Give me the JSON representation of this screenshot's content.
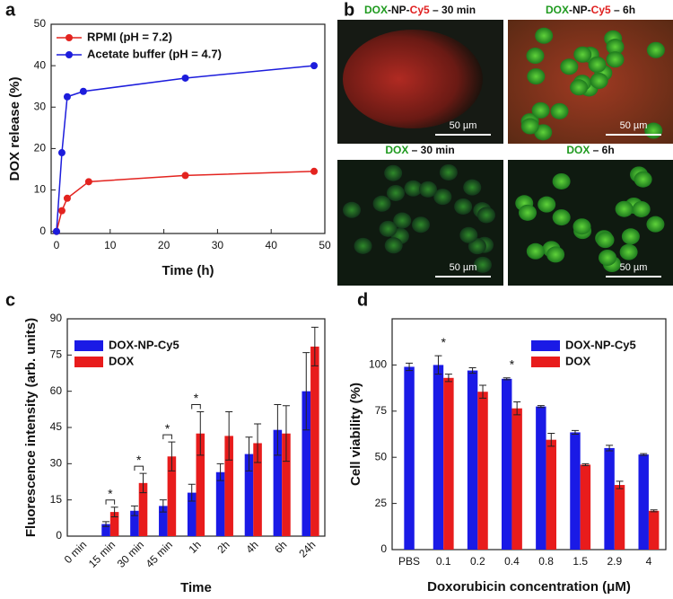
{
  "chart_data": [
    {
      "type": "line",
      "panel": "a",
      "xlabel": "Time (h)",
      "ylabel": "DOX release (%)",
      "xlim": [
        -1,
        50
      ],
      "xticks": [
        0,
        10,
        20,
        30,
        40,
        50
      ],
      "ylim": [
        -0.5,
        50
      ],
      "yticks": [
        0,
        10,
        20,
        30,
        40,
        50
      ],
      "legend": "upper left",
      "series": [
        {
          "name": "RPMI (pH = 7.2)",
          "color": "#e3231f",
          "x": [
            0,
            1,
            2,
            6,
            24,
            48
          ],
          "values": [
            0,
            5,
            8,
            12,
            13.5,
            14.5
          ]
        },
        {
          "name": "Acetate buffer (pH = 4.7)",
          "color": "#1c1cdc",
          "x": [
            0,
            1,
            2,
            5,
            24,
            48
          ],
          "values": [
            0,
            19,
            32.5,
            33.8,
            37,
            40
          ]
        }
      ]
    },
    {
      "type": "bar",
      "panel": "c",
      "xlabel": "Time",
      "ylabel": "Fluorescence intensity (arb. units)",
      "categories": [
        "0 min",
        "15 min",
        "30 min",
        "45 min",
        "1h",
        "2h",
        "4h",
        "6h",
        "24h"
      ],
      "ylim": [
        0,
        90
      ],
      "yticks": [
        0,
        15,
        30,
        45,
        60,
        75,
        90
      ],
      "legend": "upper left",
      "rotate_xticks": true,
      "annotation_bracket": true,
      "series": [
        {
          "name": "DOX-NP-Cy5",
          "color": "#1a1ae6",
          "values": [
            0,
            5,
            10.5,
            12.5,
            18,
            26.5,
            34,
            44,
            60
          ],
          "errors": [
            0,
            1,
            2,
            2.5,
            3.5,
            3.5,
            7,
            10.5,
            16
          ]
        },
        {
          "name": "DOX",
          "color": "#e81c1c",
          "values": [
            0,
            10,
            22,
            33,
            42.5,
            41.5,
            38.5,
            42.5,
            78.5
          ],
          "errors": [
            0,
            2,
            4,
            6,
            9,
            10,
            8,
            11.5,
            8
          ]
        }
      ],
      "annotations": [
        {
          "text": "*",
          "category": "15 min"
        },
        {
          "text": "*",
          "category": "30 min"
        },
        {
          "text": "*",
          "category": "45 min"
        },
        {
          "text": "*",
          "category": "1h"
        }
      ]
    },
    {
      "type": "bar",
      "panel": "d",
      "xlabel": "Doxorubicin concentration (μM)",
      "ylabel": "Cell viability (%)",
      "categories": [
        "PBS",
        "0.1",
        "0.2",
        "0.4",
        "0.8",
        "1.5",
        "2.9",
        "4"
      ],
      "ylim": [
        0,
        125
      ],
      "yticks": [
        0,
        25,
        50,
        75,
        100
      ],
      "legend": "upper right",
      "rotate_xticks": false,
      "annotation_bracket": false,
      "series": [
        {
          "name": "DOX-NP-Cy5",
          "color": "#1a1ae6",
          "values": [
            99,
            100,
            97,
            92.5,
            77.5,
            63.5,
            55,
            51.5
          ],
          "errors": [
            2,
            5,
            1.5,
            0.5,
            0.5,
            1,
            1.5,
            0.5
          ]
        },
        {
          "name": "DOX",
          "color": "#e81c1c",
          "values": [
            null,
            93,
            85.5,
            76.5,
            59.5,
            46,
            35,
            21
          ],
          "errors": [
            null,
            2,
            3.5,
            3.5,
            3.5,
            0.5,
            2,
            0.5
          ]
        }
      ],
      "annotations": [
        {
          "text": "*",
          "category": "0.1"
        },
        {
          "text": "*",
          "category": "0.4"
        }
      ]
    }
  ],
  "images": {
    "panel": "b",
    "tiles": [
      {
        "title": [
          {
            "text": "DOX",
            "color": "#1e9a1e"
          },
          {
            "text": "-NP-",
            "color": "#111111"
          },
          {
            "text": "Cy5",
            "color": "#e02020"
          },
          {
            "text": " – 30 min",
            "color": "#111111"
          }
        ],
        "scale_bar": "50 µm"
      },
      {
        "title": [
          {
            "text": "DOX",
            "color": "#1e9a1e"
          },
          {
            "text": "-NP-",
            "color": "#111111"
          },
          {
            "text": "Cy5",
            "color": "#e02020"
          },
          {
            "text": " – 6h",
            "color": "#111111"
          }
        ],
        "scale_bar": "50 µm"
      },
      {
        "title": [
          {
            "text": "DOX",
            "color": "#1e9a1e"
          },
          {
            "text": " – 30 min",
            "color": "#111111"
          }
        ],
        "scale_bar": "50 µm"
      },
      {
        "title": [
          {
            "text": "DOX",
            "color": "#1e9a1e"
          },
          {
            "text": " – 6h",
            "color": "#111111"
          }
        ],
        "scale_bar": "50 µm"
      }
    ]
  }
}
